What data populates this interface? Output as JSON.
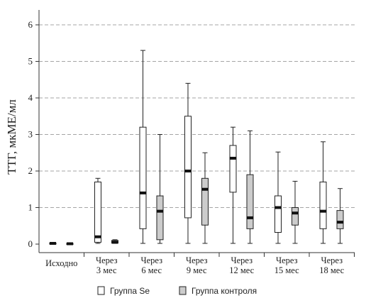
{
  "chart_data": {
    "type": "boxplot",
    "ylabel": "ТТГ, мкМЕ/мл",
    "ylim": [
      0,
      6.4
    ],
    "yticks": [
      0,
      1,
      2,
      3,
      4,
      5,
      6
    ],
    "grid": "horizontal-dashed",
    "legend_position": "bottom",
    "categories": [
      [
        "Исходно"
      ],
      [
        "Через",
        "3 мес"
      ],
      [
        "Через",
        "6 мес"
      ],
      [
        "Через",
        "9 мес"
      ],
      [
        "Через",
        "12 мес"
      ],
      [
        "Через",
        "15 мес"
      ],
      [
        "Через",
        "18 мес"
      ]
    ],
    "series": [
      {
        "name": "Группа Se",
        "fill": "#ffffff",
        "boxes": [
          {
            "min": 0.01,
            "q1": 0.01,
            "median": 0.02,
            "q3": 0.03,
            "max": 0.03
          },
          {
            "min": 0.02,
            "q1": 0.05,
            "median": 0.2,
            "q3": 1.7,
            "max": 1.8
          },
          {
            "min": 0.02,
            "q1": 0.42,
            "median": 1.4,
            "q3": 3.2,
            "max": 5.3
          },
          {
            "min": 0.02,
            "q1": 0.72,
            "median": 2.0,
            "q3": 3.5,
            "max": 4.4
          },
          {
            "min": 0.02,
            "q1": 1.42,
            "median": 2.35,
            "q3": 2.7,
            "max": 3.2
          },
          {
            "min": 0.02,
            "q1": 0.32,
            "median": 1.0,
            "q3": 1.32,
            "max": 2.52
          },
          {
            "min": 0.02,
            "q1": 0.42,
            "median": 0.9,
            "q3": 1.7,
            "max": 2.8
          }
        ]
      },
      {
        "name": "Группа контроля",
        "fill": "#cccccc",
        "boxes": [
          {
            "min": 0.0,
            "q1": 0.0,
            "median": 0.01,
            "q3": 0.02,
            "max": 0.02
          },
          {
            "min": 0.02,
            "q1": 0.03,
            "median": 0.05,
            "q3": 0.1,
            "max": 0.12
          },
          {
            "min": 0.02,
            "q1": 0.12,
            "median": 0.9,
            "q3": 1.32,
            "max": 3.0
          },
          {
            "min": 0.02,
            "q1": 0.52,
            "median": 1.5,
            "q3": 1.8,
            "max": 2.5
          },
          {
            "min": 0.02,
            "q1": 0.42,
            "median": 0.72,
            "q3": 1.9,
            "max": 3.1
          },
          {
            "min": 0.02,
            "q1": 0.52,
            "median": 0.85,
            "q3": 1.0,
            "max": 1.72
          },
          {
            "min": 0.02,
            "q1": 0.42,
            "median": 0.6,
            "q3": 0.92,
            "max": 1.52
          }
        ]
      }
    ]
  }
}
